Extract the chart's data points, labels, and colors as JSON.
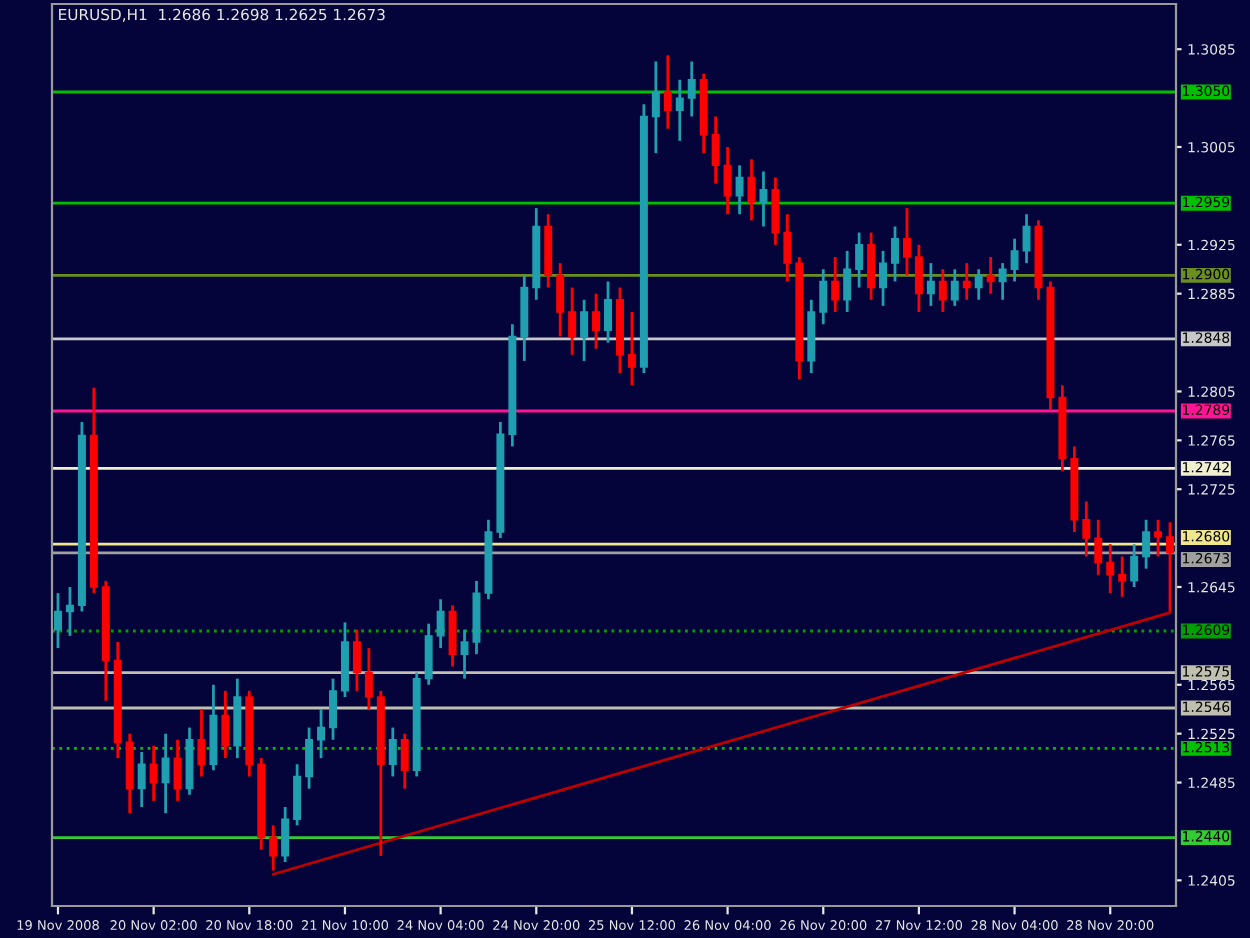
{
  "chart_data": {
    "type": "candlestick",
    "title": "EURUSD,H1  1.2686 1.2698 1.2625 1.2673",
    "categories": [
      "19 Nov 2008",
      null,
      null,
      null,
      null,
      null,
      null,
      null,
      "20 Nov 02:00",
      null,
      null,
      null,
      null,
      null,
      null,
      null,
      "20 Nov 18:00",
      null,
      null,
      null,
      null,
      null,
      null,
      null,
      "21 Nov 10:00",
      null,
      null,
      null,
      null,
      null,
      null,
      null,
      "24 Nov 04:00",
      null,
      null,
      null,
      null,
      null,
      null,
      null,
      "24 Nov 20:00",
      null,
      null,
      null,
      null,
      null,
      null,
      null,
      "25 Nov 12:00",
      null,
      null,
      null,
      null,
      null,
      null,
      null,
      "26 Nov 04:00",
      null,
      null,
      null,
      null,
      null,
      null,
      null,
      "26 Nov 20:00",
      null,
      null,
      null,
      null,
      null,
      null,
      null,
      "27 Nov 12:00",
      null,
      null,
      null,
      null,
      null,
      null,
      null,
      "28 Nov 04:00",
      null,
      null,
      null,
      null,
      null,
      null,
      null,
      "28 Nov 20:00",
      null,
      null,
      null,
      null,
      null
    ],
    "ohlc": [
      [
        1.261,
        1.264,
        1.2595,
        1.2625
      ],
      [
        1.2625,
        1.2645,
        1.2605,
        1.263
      ],
      [
        1.263,
        1.278,
        1.2625,
        1.2769
      ],
      [
        1.2769,
        1.2808,
        1.264,
        1.2645
      ],
      [
        1.2645,
        1.265,
        1.2552,
        1.2585
      ],
      [
        1.2585,
        1.26,
        1.2505,
        1.2518
      ],
      [
        1.2518,
        1.2525,
        1.246,
        1.248
      ],
      [
        1.248,
        1.251,
        1.2465,
        1.25
      ],
      [
        1.25,
        1.2515,
        1.247,
        1.2485
      ],
      [
        1.2485,
        1.2525,
        1.246,
        1.2505
      ],
      [
        1.2505,
        1.252,
        1.247,
        1.248
      ],
      [
        1.248,
        1.253,
        1.2475,
        1.252
      ],
      [
        1.252,
        1.2545,
        1.249,
        1.25
      ],
      [
        1.25,
        1.2565,
        1.2495,
        1.254
      ],
      [
        1.254,
        1.256,
        1.2505,
        1.2515
      ],
      [
        1.2515,
        1.257,
        1.2505,
        1.2555
      ],
      [
        1.2555,
        1.256,
        1.249,
        1.25
      ],
      [
        1.25,
        1.2505,
        1.243,
        1.244
      ],
      [
        1.244,
        1.245,
        1.2413,
        1.2425
      ],
      [
        1.2425,
        1.2465,
        1.242,
        1.2455
      ],
      [
        1.2455,
        1.25,
        1.245,
        1.249
      ],
      [
        1.249,
        1.253,
        1.248,
        1.252
      ],
      [
        1.252,
        1.2545,
        1.2505,
        1.253
      ],
      [
        1.253,
        1.257,
        1.252,
        1.256
      ],
      [
        1.256,
        1.2616,
        1.2555,
        1.26
      ],
      [
        1.26,
        1.261,
        1.256,
        1.2575
      ],
      [
        1.2575,
        1.2595,
        1.2545,
        1.2555
      ],
      [
        1.2555,
        1.256,
        1.2425,
        1.25
      ],
      [
        1.25,
        1.253,
        1.249,
        1.252
      ],
      [
        1.252,
        1.2525,
        1.248,
        1.2495
      ],
      [
        1.2495,
        1.2575,
        1.249,
        1.257
      ],
      [
        1.257,
        1.2615,
        1.2565,
        1.2605
      ],
      [
        1.2605,
        1.2635,
        1.2595,
        1.2625
      ],
      [
        1.2625,
        1.263,
        1.258,
        1.259
      ],
      [
        1.259,
        1.261,
        1.257,
        1.26
      ],
      [
        1.26,
        1.265,
        1.259,
        1.264
      ],
      [
        1.264,
        1.27,
        1.2635,
        1.269
      ],
      [
        1.269,
        1.278,
        1.2685,
        1.277
      ],
      [
        1.277,
        1.286,
        1.276,
        1.285
      ],
      [
        1.285,
        1.29,
        1.283,
        1.289
      ],
      [
        1.289,
        1.2955,
        1.288,
        1.294
      ],
      [
        1.294,
        1.295,
        1.289,
        1.29
      ],
      [
        1.29,
        1.291,
        1.285,
        1.287
      ],
      [
        1.287,
        1.289,
        1.2835,
        1.285
      ],
      [
        1.285,
        1.288,
        1.283,
        1.287
      ],
      [
        1.287,
        1.2885,
        1.284,
        1.2855
      ],
      [
        1.2855,
        1.2895,
        1.2845,
        1.288
      ],
      [
        1.288,
        1.289,
        1.282,
        1.2835
      ],
      [
        1.2835,
        1.287,
        1.281,
        1.2825
      ],
      [
        1.2825,
        1.304,
        1.282,
        1.303
      ],
      [
        1.303,
        1.3075,
        1.3,
        1.305
      ],
      [
        1.305,
        1.308,
        1.302,
        1.3035
      ],
      [
        1.3035,
        1.306,
        1.301,
        1.3045
      ],
      [
        1.3045,
        1.3075,
        1.303,
        1.306
      ],
      [
        1.306,
        1.3065,
        1.3,
        1.3015
      ],
      [
        1.3015,
        1.303,
        1.2975,
        1.299
      ],
      [
        1.299,
        1.3005,
        1.295,
        1.2965
      ],
      [
        1.2965,
        1.299,
        1.295,
        1.298
      ],
      [
        1.298,
        1.2995,
        1.2945,
        1.296
      ],
      [
        1.296,
        1.2985,
        1.294,
        1.297
      ],
      [
        1.297,
        1.298,
        1.2925,
        1.2935
      ],
      [
        1.2935,
        1.295,
        1.2895,
        1.291
      ],
      [
        1.291,
        1.2915,
        1.2815,
        1.283
      ],
      [
        1.283,
        1.288,
        1.282,
        1.287
      ],
      [
        1.287,
        1.2905,
        1.286,
        1.2895
      ],
      [
        1.2895,
        1.2915,
        1.287,
        1.288
      ],
      [
        1.288,
        1.292,
        1.287,
        1.2905
      ],
      [
        1.2905,
        1.2935,
        1.289,
        1.2925
      ],
      [
        1.2925,
        1.2935,
        1.288,
        1.289
      ],
      [
        1.289,
        1.292,
        1.2875,
        1.291
      ],
      [
        1.291,
        1.294,
        1.2895,
        1.293
      ],
      [
        1.293,
        1.2955,
        1.29,
        1.2915
      ],
      [
        1.2915,
        1.2925,
        1.287,
        1.2885
      ],
      [
        1.2885,
        1.291,
        1.2875,
        1.2895
      ],
      [
        1.2895,
        1.2905,
        1.287,
        1.288
      ],
      [
        1.288,
        1.2905,
        1.2875,
        1.2895
      ],
      [
        1.2895,
        1.291,
        1.288,
        1.289
      ],
      [
        1.289,
        1.2905,
        1.288,
        1.29
      ],
      [
        1.29,
        1.2915,
        1.2885,
        1.2895
      ],
      [
        1.2895,
        1.291,
        1.288,
        1.2905
      ],
      [
        1.2905,
        1.293,
        1.2895,
        1.292
      ],
      [
        1.292,
        1.295,
        1.291,
        1.294
      ],
      [
        1.294,
        1.2945,
        1.288,
        1.289
      ],
      [
        1.289,
        1.2895,
        1.279,
        1.28
      ],
      [
        1.28,
        1.281,
        1.274,
        1.275
      ],
      [
        1.275,
        1.276,
        1.269,
        1.27
      ],
      [
        1.27,
        1.2715,
        1.267,
        1.2685
      ],
      [
        1.2685,
        1.27,
        1.2655,
        1.2665
      ],
      [
        1.2665,
        1.268,
        1.264,
        1.2655
      ],
      [
        1.2655,
        1.267,
        1.2637,
        1.265
      ],
      [
        1.265,
        1.268,
        1.2645,
        1.267
      ],
      [
        1.267,
        1.27,
        1.266,
        1.269
      ],
      [
        1.269,
        1.27,
        1.267,
        1.2686
      ],
      [
        1.2686,
        1.2698,
        1.2625,
        1.2673
      ]
    ],
    "colors": [
      "#1f9fb0",
      "#1f9fb0",
      "#1f9fb0",
      "#ff0000",
      "#ff0000",
      "#ff0000",
      "#ff0000",
      "#1f9fb0",
      "#ff0000",
      "#1f9fb0",
      "#ff0000",
      "#1f9fb0",
      "#ff0000",
      "#1f9fb0",
      "#ff0000",
      "#1f9fb0",
      "#ff0000",
      "#ff0000",
      "#ff0000",
      "#1f9fb0",
      "#1f9fb0",
      "#1f9fb0",
      "#1f9fb0",
      "#1f9fb0",
      "#1f9fb0",
      "#ff0000",
      "#ff0000",
      "#ff0000",
      "#1f9fb0",
      "#ff0000",
      "#1f9fb0",
      "#1f9fb0",
      "#1f9fb0",
      "#ff0000",
      "#1f9fb0",
      "#1f9fb0",
      "#1f9fb0",
      "#1f9fb0",
      "#1f9fb0",
      "#1f9fb0",
      "#1f9fb0",
      "#ff0000",
      "#ff0000",
      "#ff0000",
      "#1f9fb0",
      "#ff0000",
      "#1f9fb0",
      "#ff0000",
      "#ff0000",
      "#1f9fb0",
      "#1f9fb0",
      "#ff0000",
      "#1f9fb0",
      "#1f9fb0",
      "#ff0000",
      "#ff0000",
      "#ff0000",
      "#1f9fb0",
      "#ff0000",
      "#1f9fb0",
      "#ff0000",
      "#ff0000",
      "#ff0000",
      "#1f9fb0",
      "#1f9fb0",
      "#ff0000",
      "#1f9fb0",
      "#1f9fb0",
      "#ff0000",
      "#1f9fb0",
      "#1f9fb0",
      "#ff0000",
      "#ff0000",
      "#1f9fb0",
      "#ff0000",
      "#1f9fb0",
      "#ff0000",
      "#1f9fb0",
      "#ff0000",
      "#1f9fb0",
      "#1f9fb0",
      "#1f9fb0",
      "#ff0000",
      "#ff0000",
      "#ff0000",
      "#ff0000",
      "#ff0000",
      "#ff0000",
      "#ff0000",
      "#ff0000",
      "#1f9fb0",
      "#1f9fb0",
      "#ff0000",
      "#ff0000"
    ],
    "series": [
      {
        "type": "line",
        "color": "#c00000",
        "values": [
          null,
          null,
          null,
          null,
          null,
          null,
          null,
          null,
          null,
          null,
          null,
          null,
          null,
          null,
          null,
          null,
          null,
          null,
          1.241,
          null,
          null,
          null,
          null,
          null,
          null,
          null,
          null,
          null,
          null,
          null,
          null,
          null,
          null,
          null,
          null,
          null,
          null,
          null,
          null,
          null,
          null,
          null,
          null,
          null,
          null,
          null,
          null,
          null,
          null,
          null,
          null,
          null,
          null,
          null,
          null,
          null,
          null,
          null,
          null,
          null,
          null,
          null,
          null,
          null,
          null,
          null,
          null,
          null,
          null,
          null,
          null,
          null,
          null,
          null,
          null,
          null,
          null,
          null,
          null,
          null,
          null,
          null,
          null,
          null,
          null,
          null,
          null,
          null,
          null,
          null,
          null,
          null,
          null,
          1.2624
        ]
      }
    ],
    "ylim": [
      1.2384,
      1.3122
    ],
    "yticks": [
      1.2405,
      1.2485,
      1.2525,
      1.2565,
      1.2645,
      1.2725,
      1.2765,
      1.2805,
      1.2885,
      1.2925,
      1.3005,
      1.3085
    ],
    "ref_lines": [
      {
        "axis": "y",
        "value": 1.305,
        "label": "1.3050",
        "color": "#00c000"
      },
      {
        "axis": "y",
        "value": 1.2959,
        "label": "1.2959",
        "color": "#00c000"
      },
      {
        "axis": "y",
        "value": 1.29,
        "label": "1.2900",
        "color": "#6b8e23"
      },
      {
        "axis": "y",
        "value": 1.2848,
        "label": "1.2848",
        "color": "#c8c8c8"
      },
      {
        "axis": "y",
        "value": 1.2789,
        "label": "1.2789",
        "color": "#ff1493"
      },
      {
        "axis": "y",
        "value": 1.2742,
        "label": "1.2742",
        "color": "#f0f0d0"
      },
      {
        "axis": "y",
        "value": 1.268,
        "label": "1.2680",
        "color": "#f0e68c"
      },
      {
        "axis": "y",
        "value": 1.2673,
        "label": "1.2673",
        "color": "#a0a0a0"
      },
      {
        "axis": "y",
        "value": 1.2609,
        "label": "1.2609",
        "color": "#00a000",
        "line_style": "dotted"
      },
      {
        "axis": "y",
        "value": 1.2575,
        "label": "1.2575",
        "color": "#c0c0b0"
      },
      {
        "axis": "y",
        "value": 1.2546,
        "label": "1.2546",
        "color": "#c0c0b0"
      },
      {
        "axis": "y",
        "value": 1.2513,
        "label": "1.2513",
        "color": "#00c000",
        "line_style": "dotted"
      },
      {
        "axis": "y",
        "value": 1.244,
        "label": "1.2440",
        "color": "#32cd32"
      }
    ]
  }
}
